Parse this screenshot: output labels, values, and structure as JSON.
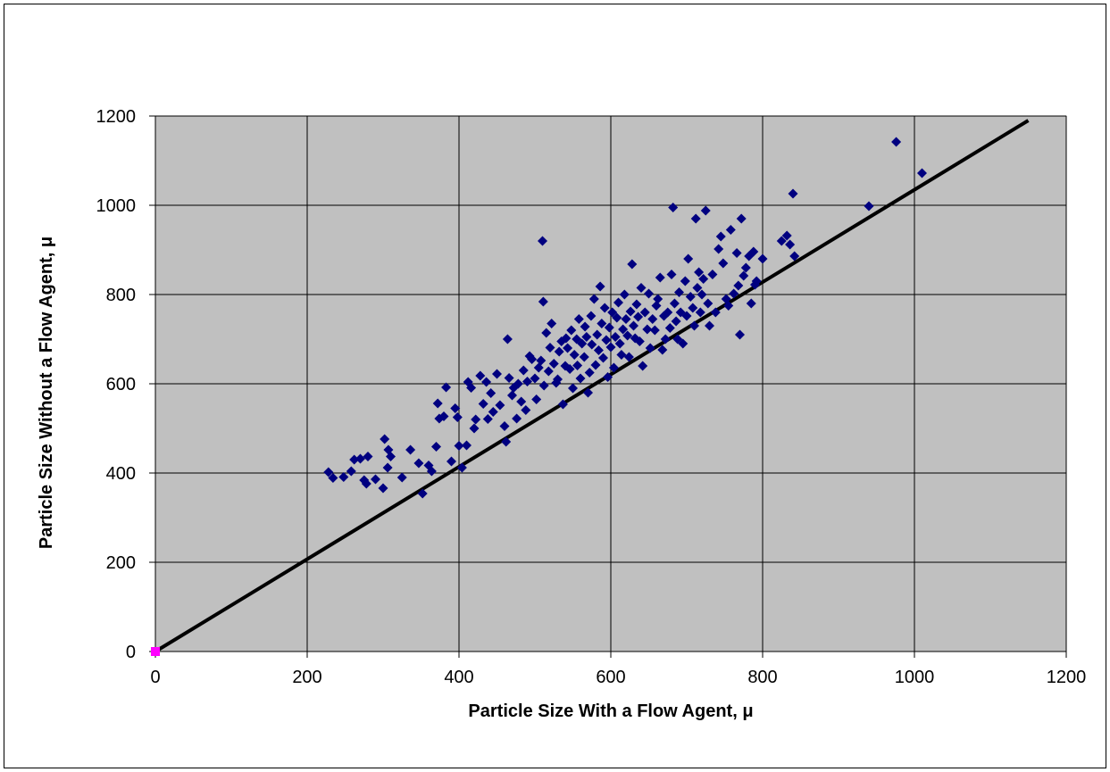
{
  "chart_data": {
    "type": "scatter",
    "title": "",
    "xlabel": "Particle Size With a Flow Agent, μ",
    "ylabel": "Particle Size Without a Flow Agent, μ",
    "xlim": [
      0,
      1200
    ],
    "ylim": [
      0,
      1200
    ],
    "x_ticks": [
      0,
      200,
      400,
      600,
      800,
      1000,
      1200
    ],
    "y_ticks": [
      0,
      200,
      400,
      600,
      800,
      1000,
      1200
    ],
    "grid": true,
    "legend": "none",
    "colors": {
      "plot_background": "#c0c0c0",
      "points": "#000080",
      "reference_line": "#000000",
      "origin_marker": "#ff00ff"
    },
    "reference_line": {
      "x": [
        0,
        1150
      ],
      "y": [
        0,
        1190
      ]
    },
    "origin_point": {
      "x": 0,
      "y": 0
    },
    "series": [
      {
        "values": [
          [
            228,
            402
          ],
          [
            234,
            389
          ],
          [
            248,
            391
          ],
          [
            258,
            404
          ],
          [
            262,
            430
          ],
          [
            270,
            432
          ],
          [
            275,
            384
          ],
          [
            280,
            437
          ],
          [
            278,
            376
          ],
          [
            290,
            386
          ],
          [
            300,
            366
          ],
          [
            302,
            476
          ],
          [
            307,
            452
          ],
          [
            310,
            437
          ],
          [
            306,
            412
          ],
          [
            325,
            390
          ],
          [
            336,
            452
          ],
          [
            347,
            422
          ],
          [
            352,
            354
          ],
          [
            360,
            417
          ],
          [
            364,
            404
          ],
          [
            370,
            459
          ],
          [
            374,
            522
          ],
          [
            372,
            556
          ],
          [
            380,
            527
          ],
          [
            383,
            592
          ],
          [
            390,
            426
          ],
          [
            395,
            545
          ],
          [
            398,
            525
          ],
          [
            400,
            461
          ],
          [
            404,
            412
          ],
          [
            410,
            462
          ],
          [
            412,
            604
          ],
          [
            416,
            591
          ],
          [
            420,
            500
          ],
          [
            422,
            520
          ],
          [
            428,
            618
          ],
          [
            432,
            555
          ],
          [
            436,
            604
          ],
          [
            438,
            521
          ],
          [
            442,
            579
          ],
          [
            445,
            537
          ],
          [
            450,
            622
          ],
          [
            454,
            552
          ],
          [
            460,
            505
          ],
          [
            462,
            470
          ],
          [
            464,
            700
          ],
          [
            466,
            613
          ],
          [
            470,
            574
          ],
          [
            472,
            591
          ],
          [
            476,
            522
          ],
          [
            478,
            600
          ],
          [
            482,
            560
          ],
          [
            485,
            630
          ],
          [
            488,
            541
          ],
          [
            490,
            605
          ],
          [
            493,
            662
          ],
          [
            496,
            655
          ],
          [
            500,
            612
          ],
          [
            502,
            565
          ],
          [
            505,
            636
          ],
          [
            508,
            652
          ],
          [
            510,
            920
          ],
          [
            511,
            784
          ],
          [
            512,
            596
          ],
          [
            515,
            714
          ],
          [
            518,
            628
          ],
          [
            520,
            681
          ],
          [
            522,
            735
          ],
          [
            525,
            645
          ],
          [
            528,
            602
          ],
          [
            530,
            610
          ],
          [
            532,
            672
          ],
          [
            535,
            695
          ],
          [
            537,
            554
          ],
          [
            540,
            640
          ],
          [
            541,
            702
          ],
          [
            543,
            680
          ],
          [
            546,
            633
          ],
          [
            548,
            720
          ],
          [
            550,
            590
          ],
          [
            552,
            665
          ],
          [
            555,
            700
          ],
          [
            556,
            641
          ],
          [
            558,
            745
          ],
          [
            560,
            612
          ],
          [
            562,
            690
          ],
          [
            565,
            660
          ],
          [
            566,
            728
          ],
          [
            568,
            705
          ],
          [
            570,
            580
          ],
          [
            572,
            625
          ],
          [
            574,
            752
          ],
          [
            575,
            688
          ],
          [
            578,
            790
          ],
          [
            580,
            642
          ],
          [
            582,
            710
          ],
          [
            584,
            675
          ],
          [
            586,
            818
          ],
          [
            588,
            735
          ],
          [
            590,
            658
          ],
          [
            592,
            770
          ],
          [
            594,
            698
          ],
          [
            596,
            615
          ],
          [
            598,
            726
          ],
          [
            600,
            682
          ],
          [
            602,
            760
          ],
          [
            604,
            636
          ],
          [
            606,
            705
          ],
          [
            608,
            748
          ],
          [
            610,
            782
          ],
          [
            612,
            690
          ],
          [
            614,
            665
          ],
          [
            616,
            722
          ],
          [
            618,
            800
          ],
          [
            620,
            745
          ],
          [
            622,
            708
          ],
          [
            624,
            660
          ],
          [
            626,
            762
          ],
          [
            628,
            868
          ],
          [
            630,
            730
          ],
          [
            632,
            702
          ],
          [
            634,
            778
          ],
          [
            636,
            750
          ],
          [
            638,
            695
          ],
          [
            640,
            815
          ],
          [
            642,
            640
          ],
          [
            645,
            760
          ],
          [
            648,
            722
          ],
          [
            650,
            802
          ],
          [
            652,
            680
          ],
          [
            655,
            745
          ],
          [
            658,
            720
          ],
          [
            660,
            775
          ],
          [
            662,
            790
          ],
          [
            665,
            838
          ],
          [
            668,
            676
          ],
          [
            670,
            752
          ],
          [
            672,
            700
          ],
          [
            675,
            760
          ],
          [
            678,
            725
          ],
          [
            680,
            845
          ],
          [
            682,
            995
          ],
          [
            684,
            780
          ],
          [
            686,
            740
          ],
          [
            688,
            700
          ],
          [
            690,
            805
          ],
          [
            692,
            760
          ],
          [
            695,
            690
          ],
          [
            698,
            830
          ],
          [
            700,
            752
          ],
          [
            702,
            880
          ],
          [
            705,
            795
          ],
          [
            708,
            770
          ],
          [
            710,
            730
          ],
          [
            712,
            970
          ],
          [
            714,
            815
          ],
          [
            716,
            850
          ],
          [
            718,
            760
          ],
          [
            720,
            800
          ],
          [
            722,
            835
          ],
          [
            725,
            988
          ],
          [
            728,
            780
          ],
          [
            730,
            730
          ],
          [
            734,
            845
          ],
          [
            738,
            760
          ],
          [
            742,
            902
          ],
          [
            745,
            930
          ],
          [
            748,
            870
          ],
          [
            752,
            790
          ],
          [
            755,
            775
          ],
          [
            758,
            945
          ],
          [
            762,
            802
          ],
          [
            766,
            893
          ],
          [
            768,
            820
          ],
          [
            770,
            710
          ],
          [
            772,
            970
          ],
          [
            775,
            842
          ],
          [
            778,
            860
          ],
          [
            782,
            886
          ],
          [
            785,
            780
          ],
          [
            788,
            896
          ],
          [
            790,
            822
          ],
          [
            792,
            830
          ],
          [
            800,
            880
          ],
          [
            825,
            920
          ],
          [
            832,
            932
          ],
          [
            836,
            912
          ],
          [
            840,
            1026
          ],
          [
            842,
            886
          ],
          [
            940,
            998
          ],
          [
            976,
            1142
          ],
          [
            1010,
            1072
          ]
        ]
      }
    ]
  }
}
